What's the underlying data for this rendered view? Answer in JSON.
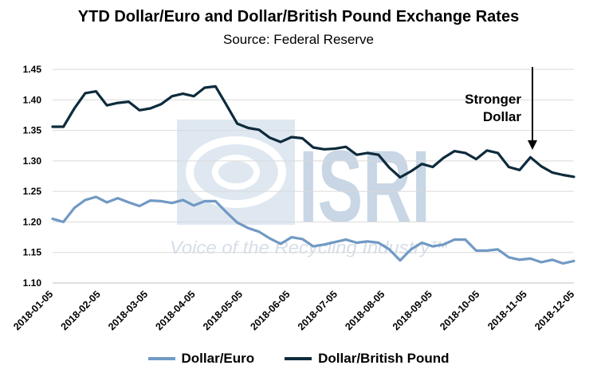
{
  "colors": {
    "euro": "#7199c4",
    "pound": "#0d2b3c",
    "grid": "#d9d9d9",
    "watermark": "#c8d6e5"
  },
  "watermark": {
    "logo_text": "ISRI",
    "tagline": "Voice of the Recycling Industry™"
  },
  "chart_data": {
    "type": "line",
    "title": "YTD Dollar/Euro and Dollar/British Pound Exchange Rates",
    "subtitle": "Source: Federal Reserve",
    "xlabel": "",
    "ylabel": "",
    "ylim": [
      1.1,
      1.45
    ],
    "yticks": [
      "1.10",
      "1.15",
      "1.20",
      "1.25",
      "1.30",
      "1.35",
      "1.40",
      "1.45"
    ],
    "xticks": [
      "2018-01-05",
      "2018-02-05",
      "2018-03-05",
      "2018-04-05",
      "2018-05-05",
      "2018-06-05",
      "2018-07-05",
      "2018-08-05",
      "2018-09-05",
      "2018-10-05",
      "2018-11-05",
      "2018-12-05"
    ],
    "grid": "horizontal",
    "legend_position": "bottom",
    "series": [
      {
        "name": "Dollar/Euro",
        "values": [
          1.205,
          1.2,
          1.223,
          1.236,
          1.241,
          1.232,
          1.239,
          1.232,
          1.226,
          1.235,
          1.234,
          1.231,
          1.236,
          1.227,
          1.234,
          1.234,
          1.216,
          1.199,
          1.19,
          1.184,
          1.173,
          1.164,
          1.175,
          1.172,
          1.16,
          1.163,
          1.167,
          1.171,
          1.166,
          1.168,
          1.166,
          1.155,
          1.137,
          1.155,
          1.166,
          1.16,
          1.163,
          1.171,
          1.171,
          1.153,
          1.153,
          1.155,
          1.142,
          1.138,
          1.14,
          1.134,
          1.138,
          1.132,
          1.136
        ]
      },
      {
        "name": "Dollar/British Pound",
        "values": [
          1.356,
          1.356,
          1.386,
          1.411,
          1.414,
          1.391,
          1.395,
          1.397,
          1.383,
          1.386,
          1.393,
          1.406,
          1.41,
          1.406,
          1.42,
          1.422,
          1.392,
          1.361,
          1.354,
          1.351,
          1.338,
          1.331,
          1.339,
          1.337,
          1.322,
          1.319,
          1.32,
          1.323,
          1.31,
          1.313,
          1.31,
          1.289,
          1.273,
          1.283,
          1.295,
          1.29,
          1.305,
          1.316,
          1.313,
          1.303,
          1.317,
          1.313,
          1.29,
          1.285,
          1.306,
          1.291,
          1.281,
          1.277,
          1.274
        ]
      }
    ],
    "annotations": [
      {
        "text": "Stronger Dollar",
        "lines": [
          "Stronger",
          "Dollar"
        ],
        "arrow": "down"
      }
    ]
  }
}
